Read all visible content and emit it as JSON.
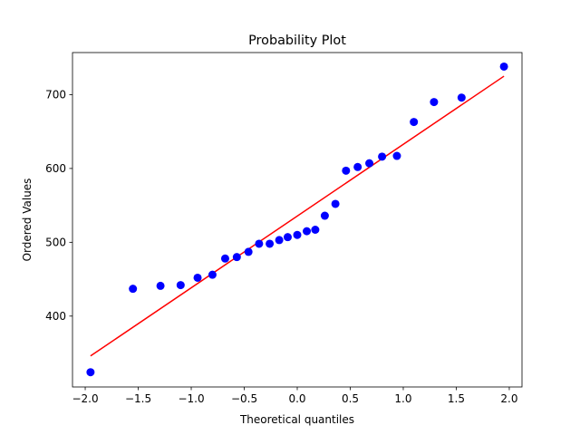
{
  "chart_data": {
    "type": "scatter",
    "title": "Probability Plot",
    "xlabel": "Theoretical quantiles",
    "ylabel": "Ordered Values",
    "xlim": [
      -2.12,
      2.12
    ],
    "ylim": [
      304,
      757
    ],
    "xticks": [
      -2.0,
      -1.5,
      -1.0,
      -0.5,
      0.0,
      0.5,
      1.0,
      1.5,
      2.0
    ],
    "xtick_labels": [
      "−2.0",
      "−1.5",
      "−1.0",
      "−0.5",
      "0.0",
      "0.5",
      "1.0",
      "1.5",
      "2.0"
    ],
    "yticks": [
      400,
      500,
      600,
      700
    ],
    "ytick_labels": [
      "400",
      "500",
      "600",
      "700"
    ],
    "grid": false,
    "points": {
      "color": "#0000ff",
      "x": [
        -1.95,
        -1.55,
        -1.29,
        -1.1,
        -0.94,
        -0.8,
        -0.68,
        -0.57,
        -0.46,
        -0.36,
        -0.26,
        -0.17,
        -0.09,
        0.0,
        0.09,
        0.17,
        0.26,
        0.36,
        0.46,
        0.57,
        0.68,
        0.8,
        0.94,
        1.1,
        1.29,
        1.55,
        1.95
      ],
      "y": [
        324,
        437,
        441,
        442,
        452,
        456,
        478,
        480,
        487,
        498,
        498,
        503,
        507,
        510,
        515,
        517,
        536,
        552,
        597,
        602,
        607,
        616,
        617,
        663,
        690,
        696,
        738
      ]
    },
    "fit_line": {
      "color": "#ff0000",
      "x": [
        -1.95,
        1.95
      ],
      "y": [
        346,
        725
      ]
    }
  }
}
